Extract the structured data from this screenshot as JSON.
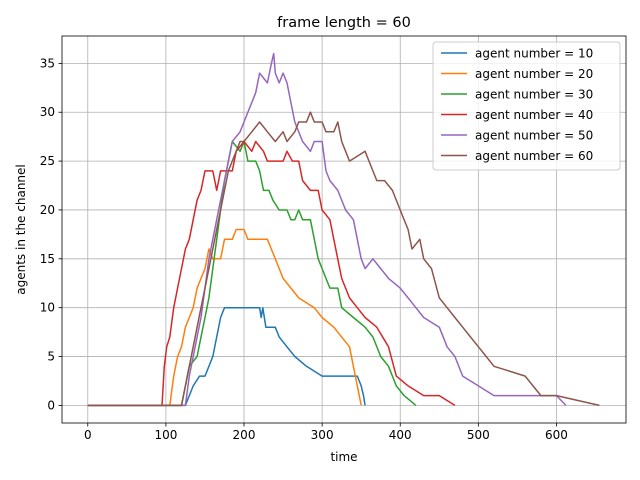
{
  "chart_data": {
    "type": "line",
    "title": "frame length = 60",
    "xlabel": "time",
    "ylabel": "agents in the channel",
    "xlim": [
      -33,
      689
    ],
    "ylim": [
      -1.8,
      37.8
    ],
    "xticks": [
      0,
      100,
      200,
      300,
      400,
      500,
      600
    ],
    "yticks": [
      0,
      5,
      10,
      15,
      20,
      25,
      30,
      35
    ],
    "grid": true,
    "legend_position": "top-right",
    "series": [
      {
        "name": "agent number = 10",
        "color": "#1f77b4",
        "points": [
          [
            0,
            0
          ],
          [
            125,
            0
          ],
          [
            130,
            1
          ],
          [
            135,
            2
          ],
          [
            143,
            3
          ],
          [
            150,
            3
          ],
          [
            155,
            4
          ],
          [
            160,
            5
          ],
          [
            165,
            7
          ],
          [
            170,
            9
          ],
          [
            175,
            10
          ],
          [
            220,
            10
          ],
          [
            222,
            9
          ],
          [
            224,
            10
          ],
          [
            228,
            8
          ],
          [
            240,
            8
          ],
          [
            245,
            7
          ],
          [
            255,
            6
          ],
          [
            265,
            5
          ],
          [
            280,
            4
          ],
          [
            300,
            3
          ],
          [
            345,
            3
          ],
          [
            350,
            2
          ],
          [
            353,
            1
          ],
          [
            355,
            0
          ]
        ]
      },
      {
        "name": "agent number = 20",
        "color": "#ff7f0e",
        "points": [
          [
            0,
            0
          ],
          [
            105,
            0
          ],
          [
            110,
            3
          ],
          [
            115,
            5
          ],
          [
            120,
            6
          ],
          [
            125,
            8
          ],
          [
            130,
            9
          ],
          [
            135,
            10
          ],
          [
            140,
            12
          ],
          [
            145,
            13
          ],
          [
            150,
            14
          ],
          [
            155,
            16
          ],
          [
            160,
            15
          ],
          [
            170,
            15
          ],
          [
            175,
            17
          ],
          [
            185,
            17
          ],
          [
            190,
            18
          ],
          [
            200,
            18
          ],
          [
            205,
            17
          ],
          [
            230,
            17
          ],
          [
            240,
            15
          ],
          [
            250,
            13
          ],
          [
            260,
            12
          ],
          [
            270,
            11
          ],
          [
            290,
            10
          ],
          [
            300,
            9
          ],
          [
            315,
            8
          ],
          [
            335,
            6
          ],
          [
            340,
            4
          ],
          [
            345,
            2
          ],
          [
            350,
            0
          ]
        ]
      },
      {
        "name": "agent number = 30",
        "color": "#2ca02c",
        "points": [
          [
            0,
            0
          ],
          [
            120,
            0
          ],
          [
            125,
            2
          ],
          [
            130,
            4
          ],
          [
            140,
            5
          ],
          [
            145,
            7
          ],
          [
            150,
            9
          ],
          [
            155,
            11
          ],
          [
            160,
            14
          ],
          [
            165,
            17
          ],
          [
            170,
            20
          ],
          [
            175,
            23
          ],
          [
            180,
            25
          ],
          [
            185,
            27
          ],
          [
            195,
            26
          ],
          [
            200,
            27
          ],
          [
            205,
            25
          ],
          [
            215,
            25
          ],
          [
            220,
            24
          ],
          [
            225,
            22
          ],
          [
            232,
            22
          ],
          [
            237,
            21
          ],
          [
            245,
            20
          ],
          [
            255,
            20
          ],
          [
            260,
            19
          ],
          [
            265,
            19
          ],
          [
            270,
            20
          ],
          [
            275,
            19
          ],
          [
            285,
            19
          ],
          [
            290,
            17
          ],
          [
            295,
            15
          ],
          [
            300,
            14
          ],
          [
            305,
            13
          ],
          [
            310,
            12
          ],
          [
            320,
            12
          ],
          [
            325,
            10
          ],
          [
            340,
            9
          ],
          [
            355,
            8
          ],
          [
            365,
            7
          ],
          [
            375,
            5
          ],
          [
            385,
            4
          ],
          [
            395,
            2
          ],
          [
            405,
            1
          ],
          [
            420,
            0
          ]
        ]
      },
      {
        "name": "agent number = 40",
        "color": "#d62728",
        "points": [
          [
            0,
            0
          ],
          [
            95,
            0
          ],
          [
            98,
            4
          ],
          [
            101,
            6
          ],
          [
            105,
            7
          ],
          [
            110,
            10
          ],
          [
            115,
            12
          ],
          [
            120,
            14
          ],
          [
            125,
            16
          ],
          [
            130,
            17
          ],
          [
            135,
            19
          ],
          [
            140,
            21
          ],
          [
            145,
            22
          ],
          [
            150,
            24
          ],
          [
            160,
            24
          ],
          [
            165,
            22
          ],
          [
            170,
            24
          ],
          [
            185,
            24
          ],
          [
            190,
            26
          ],
          [
            200,
            27
          ],
          [
            210,
            26
          ],
          [
            215,
            27
          ],
          [
            225,
            26
          ],
          [
            230,
            25
          ],
          [
            250,
            25
          ],
          [
            255,
            26
          ],
          [
            262,
            25
          ],
          [
            270,
            25
          ],
          [
            275,
            23
          ],
          [
            285,
            22
          ],
          [
            295,
            22
          ],
          [
            300,
            20
          ],
          [
            310,
            19
          ],
          [
            315,
            17
          ],
          [
            325,
            13
          ],
          [
            335,
            11
          ],
          [
            345,
            10
          ],
          [
            355,
            9
          ],
          [
            370,
            8
          ],
          [
            385,
            6
          ],
          [
            395,
            3
          ],
          [
            410,
            2
          ],
          [
            430,
            1
          ],
          [
            450,
            1
          ],
          [
            470,
            0
          ]
        ]
      },
      {
        "name": "agent number = 50",
        "color": "#9467bd",
        "points": [
          [
            0,
            0
          ],
          [
            125,
            0
          ],
          [
            130,
            3
          ],
          [
            135,
            5
          ],
          [
            140,
            7
          ],
          [
            145,
            9
          ],
          [
            150,
            12
          ],
          [
            155,
            15
          ],
          [
            160,
            17
          ],
          [
            165,
            19
          ],
          [
            170,
            21
          ],
          [
            175,
            23
          ],
          [
            180,
            25
          ],
          [
            185,
            27
          ],
          [
            195,
            28
          ],
          [
            200,
            29
          ],
          [
            205,
            30
          ],
          [
            210,
            31
          ],
          [
            215,
            32
          ],
          [
            220,
            34
          ],
          [
            230,
            33
          ],
          [
            235,
            35
          ],
          [
            238,
            36
          ],
          [
            240,
            34
          ],
          [
            245,
            33
          ],
          [
            250,
            34
          ],
          [
            255,
            33
          ],
          [
            260,
            31
          ],
          [
            265,
            29
          ],
          [
            270,
            28
          ],
          [
            275,
            27
          ],
          [
            285,
            26
          ],
          [
            290,
            27
          ],
          [
            300,
            27
          ],
          [
            305,
            24
          ],
          [
            310,
            23
          ],
          [
            320,
            22
          ],
          [
            330,
            20
          ],
          [
            340,
            19
          ],
          [
            345,
            17
          ],
          [
            350,
            15
          ],
          [
            355,
            14
          ],
          [
            365,
            15
          ],
          [
            375,
            14
          ],
          [
            385,
            13
          ],
          [
            400,
            12
          ],
          [
            410,
            11
          ],
          [
            420,
            10
          ],
          [
            430,
            9
          ],
          [
            450,
            8
          ],
          [
            460,
            6
          ],
          [
            470,
            5
          ],
          [
            480,
            3
          ],
          [
            500,
            2
          ],
          [
            520,
            1
          ],
          [
            580,
            1
          ],
          [
            600,
            1
          ],
          [
            612,
            0
          ]
        ]
      },
      {
        "name": "agent number = 60",
        "color": "#8c564b",
        "points": [
          [
            0,
            0
          ],
          [
            120,
            0
          ],
          [
            125,
            2
          ],
          [
            130,
            4
          ],
          [
            135,
            6
          ],
          [
            140,
            8
          ],
          [
            145,
            10
          ],
          [
            150,
            12
          ],
          [
            155,
            14
          ],
          [
            160,
            16
          ],
          [
            165,
            18
          ],
          [
            170,
            20
          ],
          [
            175,
            22
          ],
          [
            180,
            24
          ],
          [
            185,
            25
          ],
          [
            190,
            26
          ],
          [
            195,
            27
          ],
          [
            200,
            27
          ],
          [
            210,
            28
          ],
          [
            220,
            29
          ],
          [
            230,
            28
          ],
          [
            240,
            27
          ],
          [
            250,
            28
          ],
          [
            255,
            27
          ],
          [
            265,
            28
          ],
          [
            270,
            29
          ],
          [
            280,
            29
          ],
          [
            285,
            30
          ],
          [
            290,
            29
          ],
          [
            300,
            29
          ],
          [
            305,
            28
          ],
          [
            315,
            28
          ],
          [
            320,
            29
          ],
          [
            325,
            27
          ],
          [
            330,
            26
          ],
          [
            335,
            25
          ],
          [
            355,
            26
          ],
          [
            360,
            25
          ],
          [
            365,
            24
          ],
          [
            370,
            23
          ],
          [
            380,
            23
          ],
          [
            390,
            22
          ],
          [
            400,
            20
          ],
          [
            405,
            19
          ],
          [
            410,
            18
          ],
          [
            415,
            16
          ],
          [
            425,
            17
          ],
          [
            430,
            15
          ],
          [
            440,
            14
          ],
          [
            450,
            11
          ],
          [
            460,
            10
          ],
          [
            470,
            9
          ],
          [
            480,
            8
          ],
          [
            490,
            7
          ],
          [
            500,
            6
          ],
          [
            510,
            5
          ],
          [
            520,
            4
          ],
          [
            560,
            3
          ],
          [
            570,
            2
          ],
          [
            580,
            1
          ],
          [
            600,
            1
          ],
          [
            655,
            0
          ]
        ]
      }
    ]
  }
}
